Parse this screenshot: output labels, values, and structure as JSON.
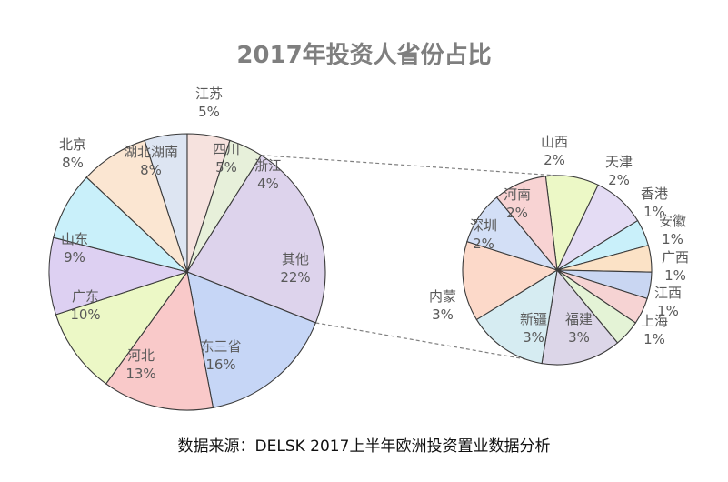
{
  "chart_data": {
    "type": "pie",
    "title": "2017年投资人省份占比",
    "source": "数据来源：DELSK 2017上半年欧洲投资置业数据分析",
    "main_pie": {
      "slices": [
        {
          "label": "江苏",
          "value_text": "5%",
          "value": 5,
          "color": "#dde5f2"
        },
        {
          "label": "四川",
          "value_text": "5%",
          "value": 5,
          "color": "#f6e2de"
        },
        {
          "label": "浙江",
          "value_text": "4%",
          "value": 4,
          "color": "#e7f0da"
        },
        {
          "label": "其他",
          "value_text": "22%",
          "value": 22,
          "color": "#ddd3ec"
        },
        {
          "label": "东三省",
          "value_text": "16%",
          "value": 16,
          "color": "#c6d6f6"
        },
        {
          "label": "河北",
          "value_text": "13%",
          "value": 13,
          "color": "#f9c9c9"
        },
        {
          "label": "广东",
          "value_text": "10%",
          "value": 10,
          "color": "#ecf8c6"
        },
        {
          "label": "山东",
          "value_text": "9%",
          "value": 9,
          "color": "#ddd0f2"
        },
        {
          "label": "北京",
          "value_text": "8%",
          "value": 8,
          "color": "#c9f0fa"
        },
        {
          "label": "湖北湖南",
          "value_text": "8%",
          "value": 8,
          "color": "#fbe6d2"
        }
      ]
    },
    "breakout_pie": {
      "parent_slice": "其他",
      "slices": [
        {
          "label": "山西",
          "value_text": "2%",
          "value": 2,
          "color": "#ecf8c6"
        },
        {
          "label": "天津",
          "value_text": "2%",
          "value": 2,
          "color": "#e4dcf4"
        },
        {
          "label": "香港",
          "value_text": "1%",
          "value": 1,
          "color": "#c9f0fa"
        },
        {
          "label": "安徽",
          "value_text": "1%",
          "value": 1,
          "color": "#fbe2c6"
        },
        {
          "label": "广西",
          "value_text": "1%",
          "value": 1,
          "color": "#c9d6f2"
        },
        {
          "label": "江西",
          "value_text": "1%",
          "value": 1,
          "color": "#f6d3d3"
        },
        {
          "label": "上海",
          "value_text": "1%",
          "value": 1,
          "color": "#e4f3d6"
        },
        {
          "label": "福建",
          "value_text": "3%",
          "value": 3,
          "color": "#dcd6e8"
        },
        {
          "label": "新疆",
          "value_text": "3%",
          "value": 3,
          "color": "#d6ecf2"
        },
        {
          "label": "内蒙",
          "value_text": "3%",
          "value": 3,
          "color": "#fcd9c9"
        },
        {
          "label": "深圳",
          "value_text": "2%",
          "value": 2,
          "color": "#d3dff6"
        },
        {
          "label": "河南",
          "value_text": "2%",
          "value": 2,
          "color": "#f8d3d3"
        }
      ]
    }
  }
}
